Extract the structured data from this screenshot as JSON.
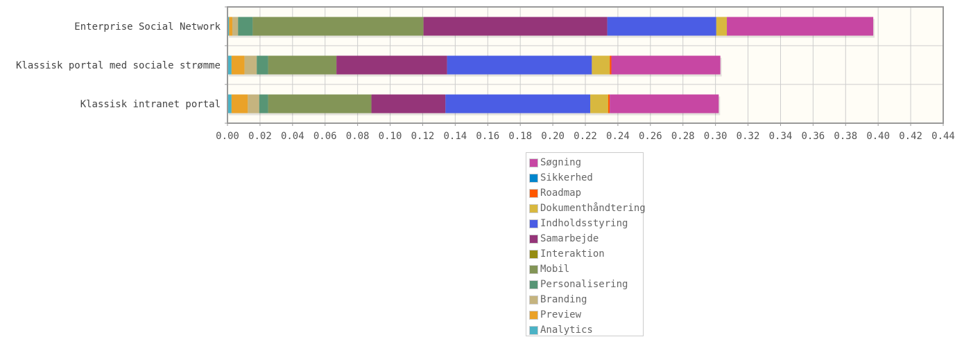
{
  "chart_data": {
    "type": "bar",
    "orientation": "horizontal",
    "stacked": true,
    "categories": [
      "Enterprise Social Network",
      "Klassisk portal med sociale strømme",
      "Klassisk intranet portal"
    ],
    "xlim": [
      0,
      0.44
    ],
    "xticks": [
      "0.00",
      "0.02",
      "0.04",
      "0.06",
      "0.08",
      "0.10",
      "0.12",
      "0.14",
      "0.16",
      "0.18",
      "0.20",
      "0.22",
      "0.24",
      "0.26",
      "0.28",
      "0.30",
      "0.32",
      "0.34",
      "0.36",
      "0.38",
      "0.40",
      "0.42",
      "0.44"
    ],
    "grid": true,
    "legend_position": "bottom",
    "series": [
      {
        "name": "Analytics",
        "color": "#4bb2c5",
        "values": [
          0.001,
          0.0025,
          0.0025
        ]
      },
      {
        "name": "Preview",
        "color": "#eaa228",
        "values": [
          0.002,
          0.008,
          0.01
        ]
      },
      {
        "name": "Branding",
        "color": "#c5b47f",
        "values": [
          0.0035,
          0.0075,
          0.007
        ]
      },
      {
        "name": "Personalisering",
        "color": "#579575",
        "values": [
          0.009,
          0.007,
          0.0055
        ]
      },
      {
        "name": "Mobil",
        "color": "#839557",
        "values": [
          0.105,
          0.042,
          0.0635
        ]
      },
      {
        "name": "Interaktion",
        "color": "#958c12",
        "values": [
          0.0,
          0.0,
          0.0
        ]
      },
      {
        "name": "Samarbejde",
        "color": "#953579",
        "values": [
          0.113,
          0.068,
          0.0455
        ]
      },
      {
        "name": "Indholdsstyring",
        "color": "#4b5de4",
        "values": [
          0.067,
          0.089,
          0.089
        ]
      },
      {
        "name": "Dokumenthåndtering",
        "color": "#d8b83f",
        "values": [
          0.0065,
          0.011,
          0.011
        ]
      },
      {
        "name": "Roadmap",
        "color": "#ff5800",
        "values": [
          0.0,
          0.001,
          0.001
        ]
      },
      {
        "name": "Sikkerhed",
        "color": "#0085cc",
        "values": [
          0.0,
          0.0,
          0.0
        ]
      },
      {
        "name": "Søgning",
        "color": "#c747a3",
        "values": [
          0.09,
          0.067,
          0.067
        ]
      }
    ]
  },
  "legend_order": [
    "Søgning",
    "Sikkerhed",
    "Roadmap",
    "Dokumenthåndtering",
    "Indholdsstyring",
    "Samarbejde",
    "Interaktion",
    "Mobil",
    "Personalisering",
    "Branding",
    "Preview",
    "Analytics"
  ],
  "colors": {
    "plot_background": "#fffdf6",
    "grid": "#cccccc",
    "axis": "#999999"
  }
}
